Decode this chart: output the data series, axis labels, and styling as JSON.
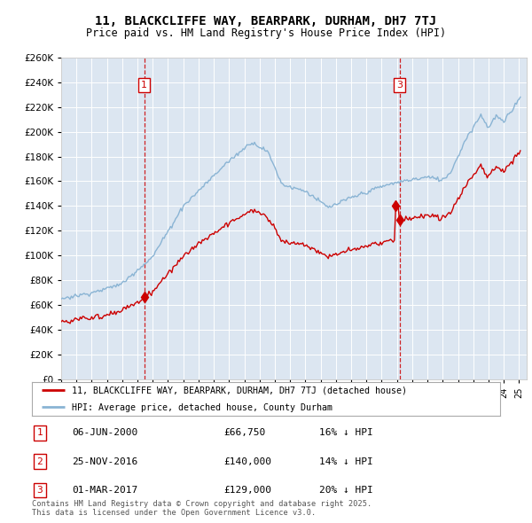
{
  "title": "11, BLACKCLIFFE WAY, BEARPARK, DURHAM, DH7 7TJ",
  "subtitle": "Price paid vs. HM Land Registry's House Price Index (HPI)",
  "ylim": [
    0,
    260000
  ],
  "yticks": [
    0,
    20000,
    40000,
    60000,
    80000,
    100000,
    120000,
    140000,
    160000,
    180000,
    200000,
    220000,
    240000,
    260000
  ],
  "bg_color": "#dce6f1",
  "red_color": "#cc0000",
  "blue_color": "#8ab4d4",
  "sale1_date": 2000.44,
  "sale1_price": 66750,
  "sale2_date": 2016.9,
  "sale2_price": 140000,
  "sale3_date": 2017.17,
  "sale3_price": 129000,
  "legend_label_red": "11, BLACKCLIFFE WAY, BEARPARK, DURHAM, DH7 7TJ (detached house)",
  "legend_label_blue": "HPI: Average price, detached house, County Durham",
  "table_data": [
    {
      "num": "1",
      "date": "06-JUN-2000",
      "price": "£66,750",
      "change": "16% ↓ HPI"
    },
    {
      "num": "2",
      "date": "25-NOV-2016",
      "price": "£140,000",
      "change": "14% ↓ HPI"
    },
    {
      "num": "3",
      "date": "01-MAR-2017",
      "price": "£129,000",
      "change": "20% ↓ HPI"
    }
  ],
  "footer": "Contains HM Land Registry data © Crown copyright and database right 2025.\nThis data is licensed under the Open Government Licence v3.0."
}
